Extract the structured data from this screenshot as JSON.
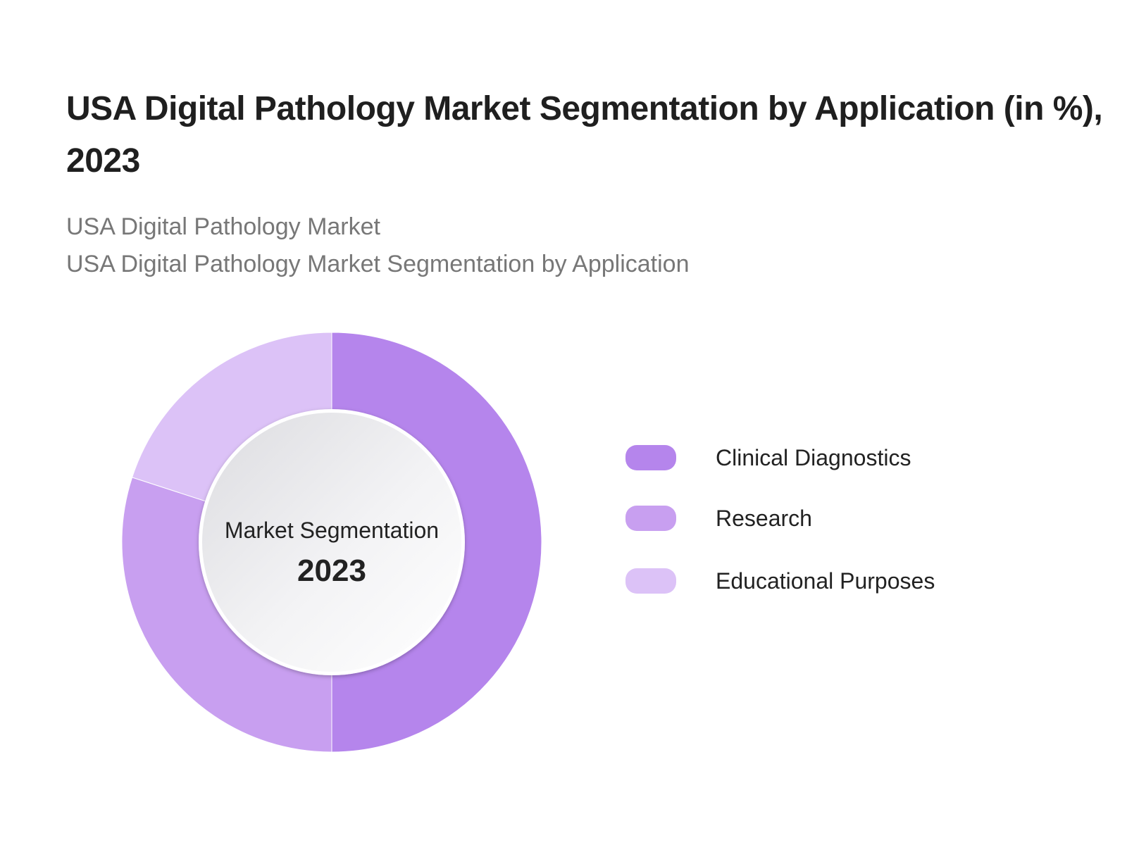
{
  "title": "USA Digital Pathology Market Segmentation by Application (in %), 2023",
  "subtitles": [
    "USA Digital Pathology Market",
    "USA Digital Pathology Market Segmentation by Application"
  ],
  "center": {
    "label": "Market Segmentation",
    "year": "2023"
  },
  "colors": {
    "clinical": "#b585ec",
    "research": "#c89ff0",
    "educational": "#dcc2f7"
  },
  "chart_data": {
    "type": "pie",
    "variant": "donut",
    "title": "USA Digital Pathology Market Segmentation by Application (in %), 2023",
    "categories": [
      "Clinical Diagnostics",
      "Research",
      "Educational Purposes"
    ],
    "values": [
      50,
      30,
      20
    ],
    "colors": [
      "#b585ec",
      "#c89ff0",
      "#dcc2f7"
    ],
    "legend": "right"
  }
}
